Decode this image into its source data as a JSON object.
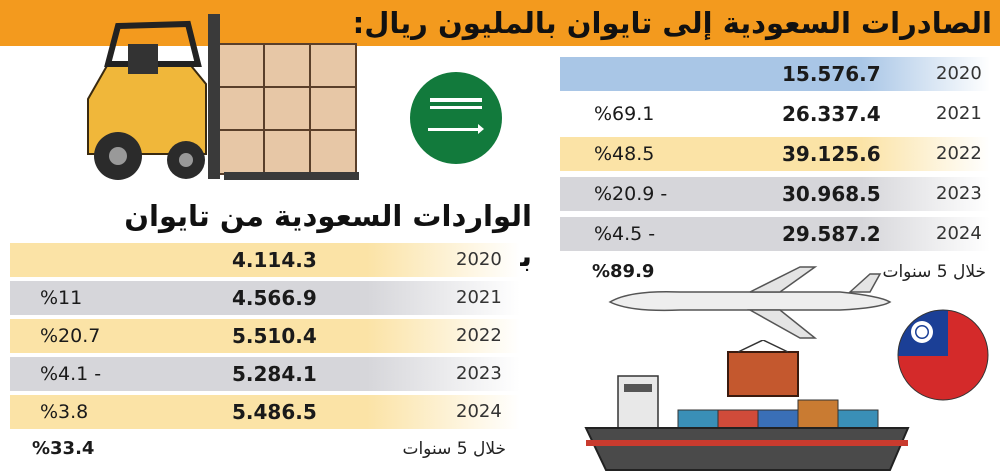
{
  "exports": {
    "title": "الصادرات السعودية إلى تايوان بالمليون ريال:",
    "rows": [
      {
        "year": "2020",
        "value": "15.576.7",
        "change": ""
      },
      {
        "year": "2021",
        "value": "26.337.4",
        "change": "%69.1"
      },
      {
        "year": "2022",
        "value": "39.125.6",
        "change": "%48.5"
      },
      {
        "year": "2023",
        "value": "30.968.5",
        "change": "%20.9 -"
      },
      {
        "year": "2024",
        "value": "29.587.2",
        "change": "%4.5 -"
      }
    ],
    "summary": {
      "label": "خلال 5 سنوات",
      "value": "%89.9"
    }
  },
  "imports": {
    "title": "الواردات السعودية من تايوان بالمليون ريال",
    "rows": [
      {
        "year": "2020",
        "value": "4.114.3",
        "change": ""
      },
      {
        "year": "2021",
        "value": "4.566.9",
        "change": "%11"
      },
      {
        "year": "2022",
        "value": "5.510.4",
        "change": "%20.7"
      },
      {
        "year": "2023",
        "value": "5.284.1",
        "change": "%4.1 -"
      },
      {
        "year": "2024",
        "value": "5.486.5",
        "change": "%3.8"
      }
    ],
    "summary": {
      "label": "خلال 5 سنوات",
      "value": "%33.4"
    }
  },
  "colors": {
    "accent_orange": "#f39a1e",
    "row_blue": "#a9c6e6",
    "row_yellow": "#fbe3a6",
    "row_gray": "#d6d6da",
    "row_white": "#ffffff"
  },
  "icons": [
    "forklift-illustration",
    "saudi-flag",
    "airplane-illustration",
    "cargo-ship-illustration",
    "taiwan-flag"
  ]
}
